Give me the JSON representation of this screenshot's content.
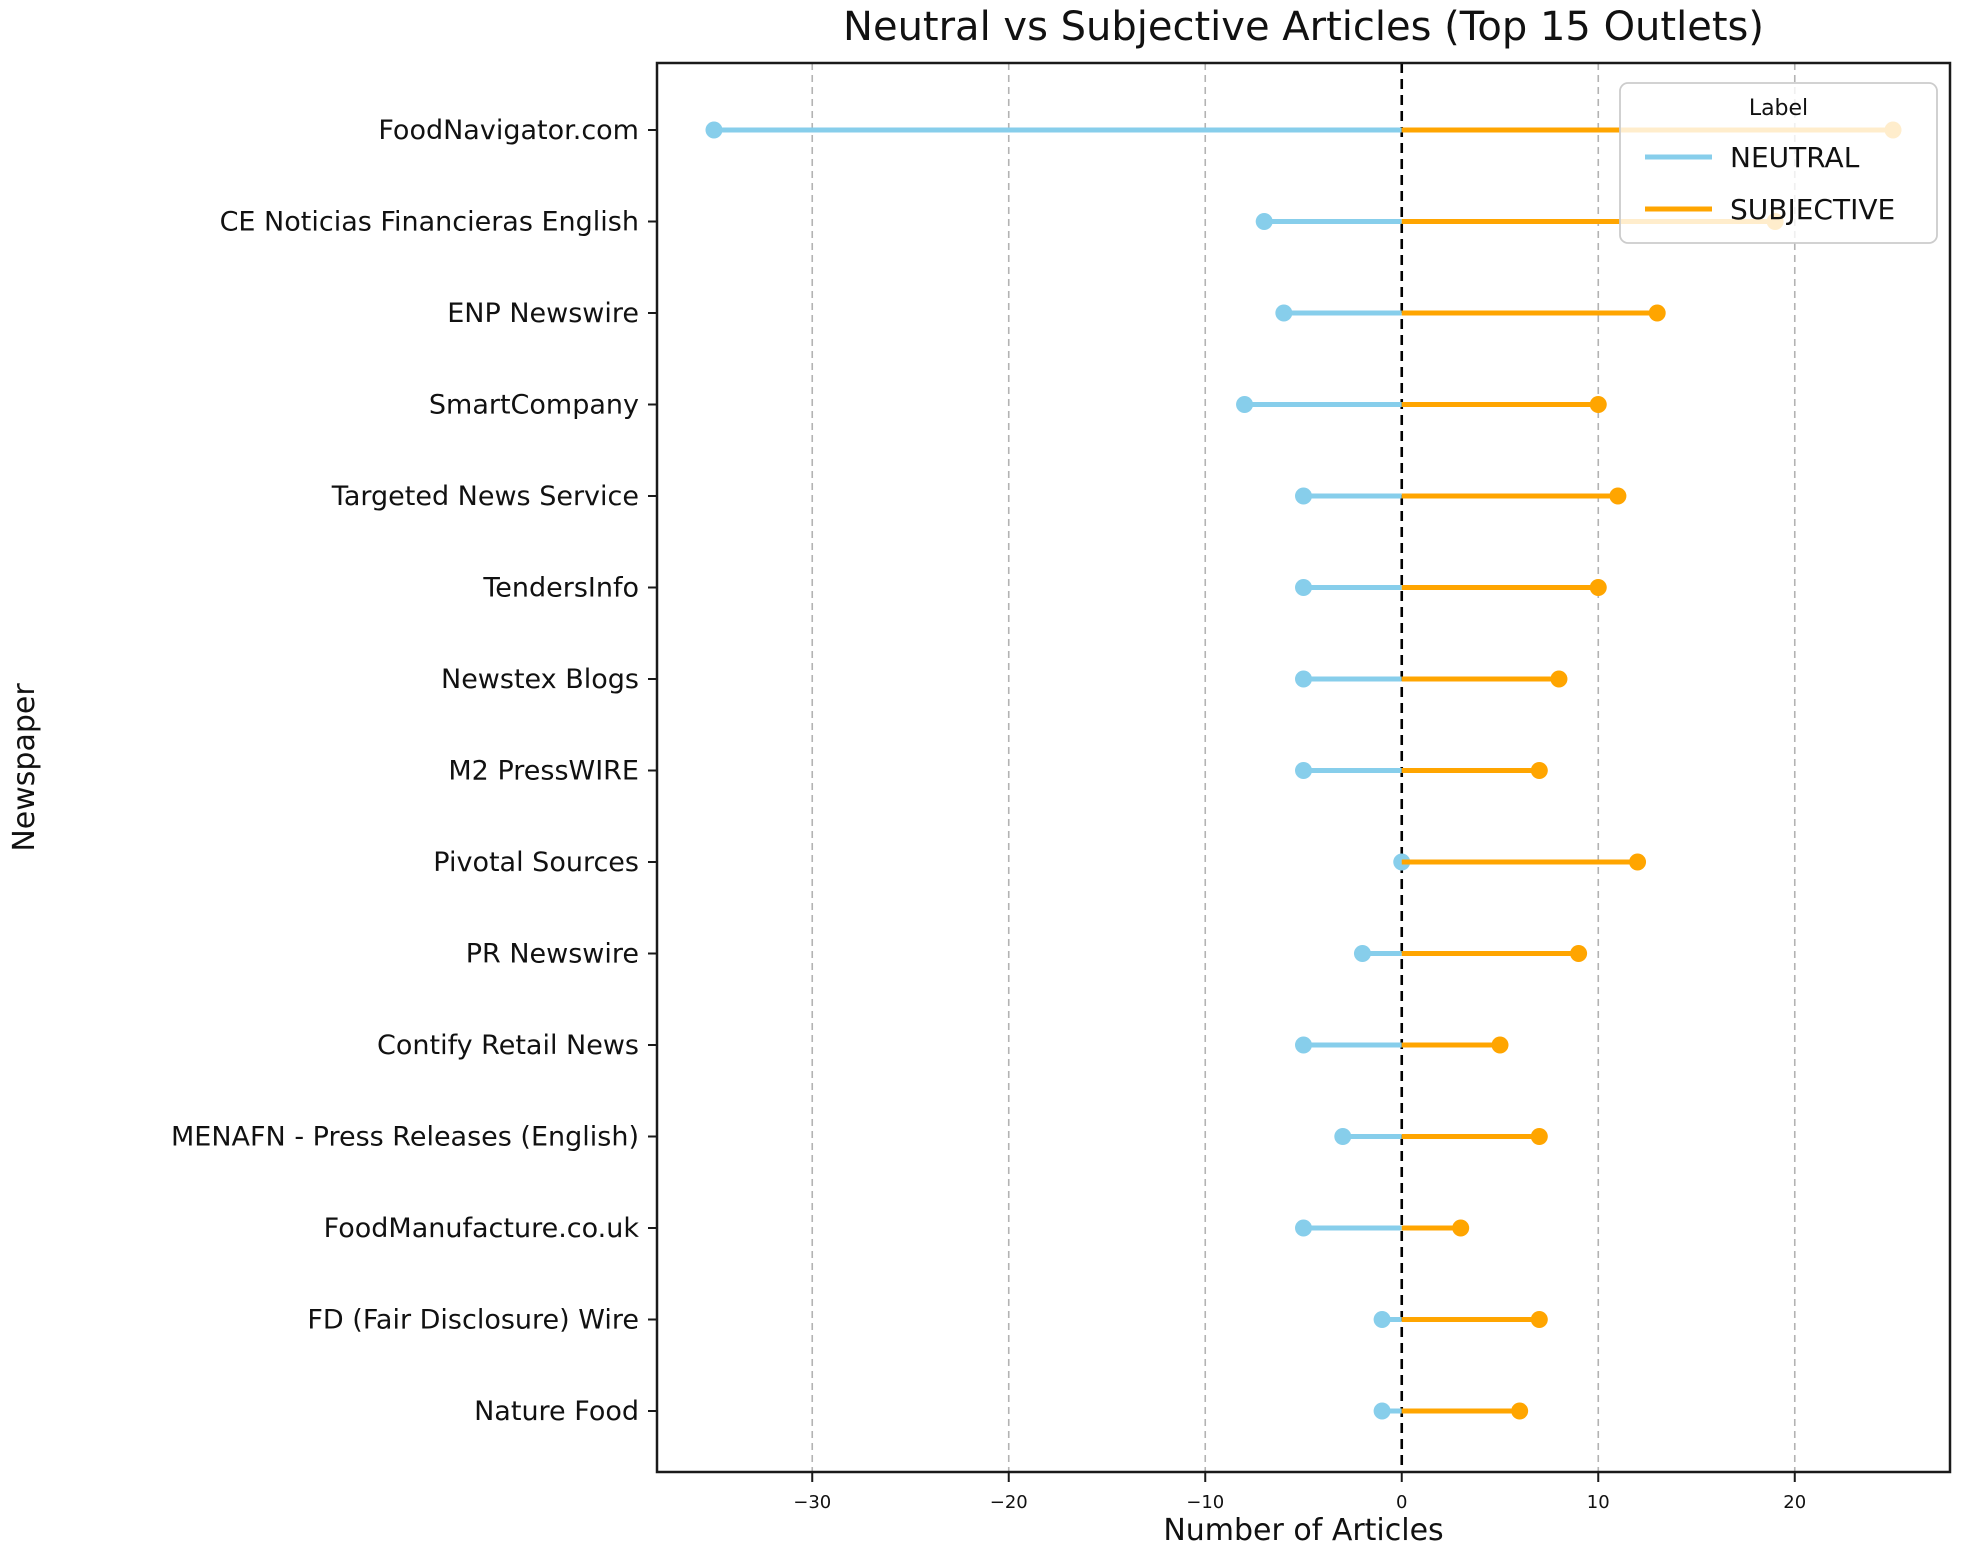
{
  "figure": {
    "kind": "matplotlib-style diverging lollipop chart screenshot"
  },
  "chart_data": {
    "type": "diverging-lollipop",
    "orientation": "horizontal",
    "title": "Neutral vs Subjective Articles (Top 15 Outlets)",
    "xlabel": "Number of Articles",
    "ylabel": "Newspaper",
    "categories": [
      "FoodNavigator.com",
      "CE Noticias Financieras English",
      "ENP Newswire",
      "SmartCompany",
      "Targeted News Service",
      "TendersInfo",
      "Newstex Blogs",
      "M2 PressWIRE",
      "Pivotal Sources",
      "PR Newswire",
      "Contify Retail News",
      "MENAFN - Press Releases (English)",
      "FoodManufacture.co.uk",
      "FD (Fair Disclosure) Wire",
      "Nature Food"
    ],
    "series": [
      {
        "name": "NEUTRAL",
        "color": "#87CEEB",
        "plotted_as": "negative (left of zero)",
        "values": [
          35,
          7,
          6,
          8,
          5,
          5,
          5,
          5,
          0,
          2,
          5,
          3,
          5,
          1,
          1
        ]
      },
      {
        "name": "SUBJECTIVE",
        "color": "#FFA500",
        "plotted_as": "positive (right of zero)",
        "values": [
          25,
          19,
          13,
          10,
          11,
          10,
          8,
          7,
          12,
          9,
          5,
          7,
          3,
          7,
          6
        ]
      }
    ],
    "x_ticks": [
      -30,
      -20,
      -10,
      0,
      10,
      20
    ],
    "x_tick_labels": [
      "−30",
      "−20",
      "−10",
      "0",
      "10",
      "20"
    ],
    "xlim": [
      -37.9,
      27.9
    ],
    "grid": "vertical dashed gray lines at ticks",
    "zero_line": {
      "style": "dashed",
      "color": "#000000"
    },
    "legend": {
      "title": "Label",
      "position": "upper right",
      "entries": [
        {
          "label": "NEUTRAL",
          "color": "#87CEEB"
        },
        {
          "label": "SUBJECTIVE",
          "color": "#FFA500"
        }
      ]
    },
    "colors": {
      "neutral": "#87CEEB",
      "subjective": "#FFA500",
      "grid": "#b3b3b3",
      "spine": "#1a1a1a",
      "legend_border": "#cccccc",
      "legend_bg": "#ffffff"
    }
  }
}
